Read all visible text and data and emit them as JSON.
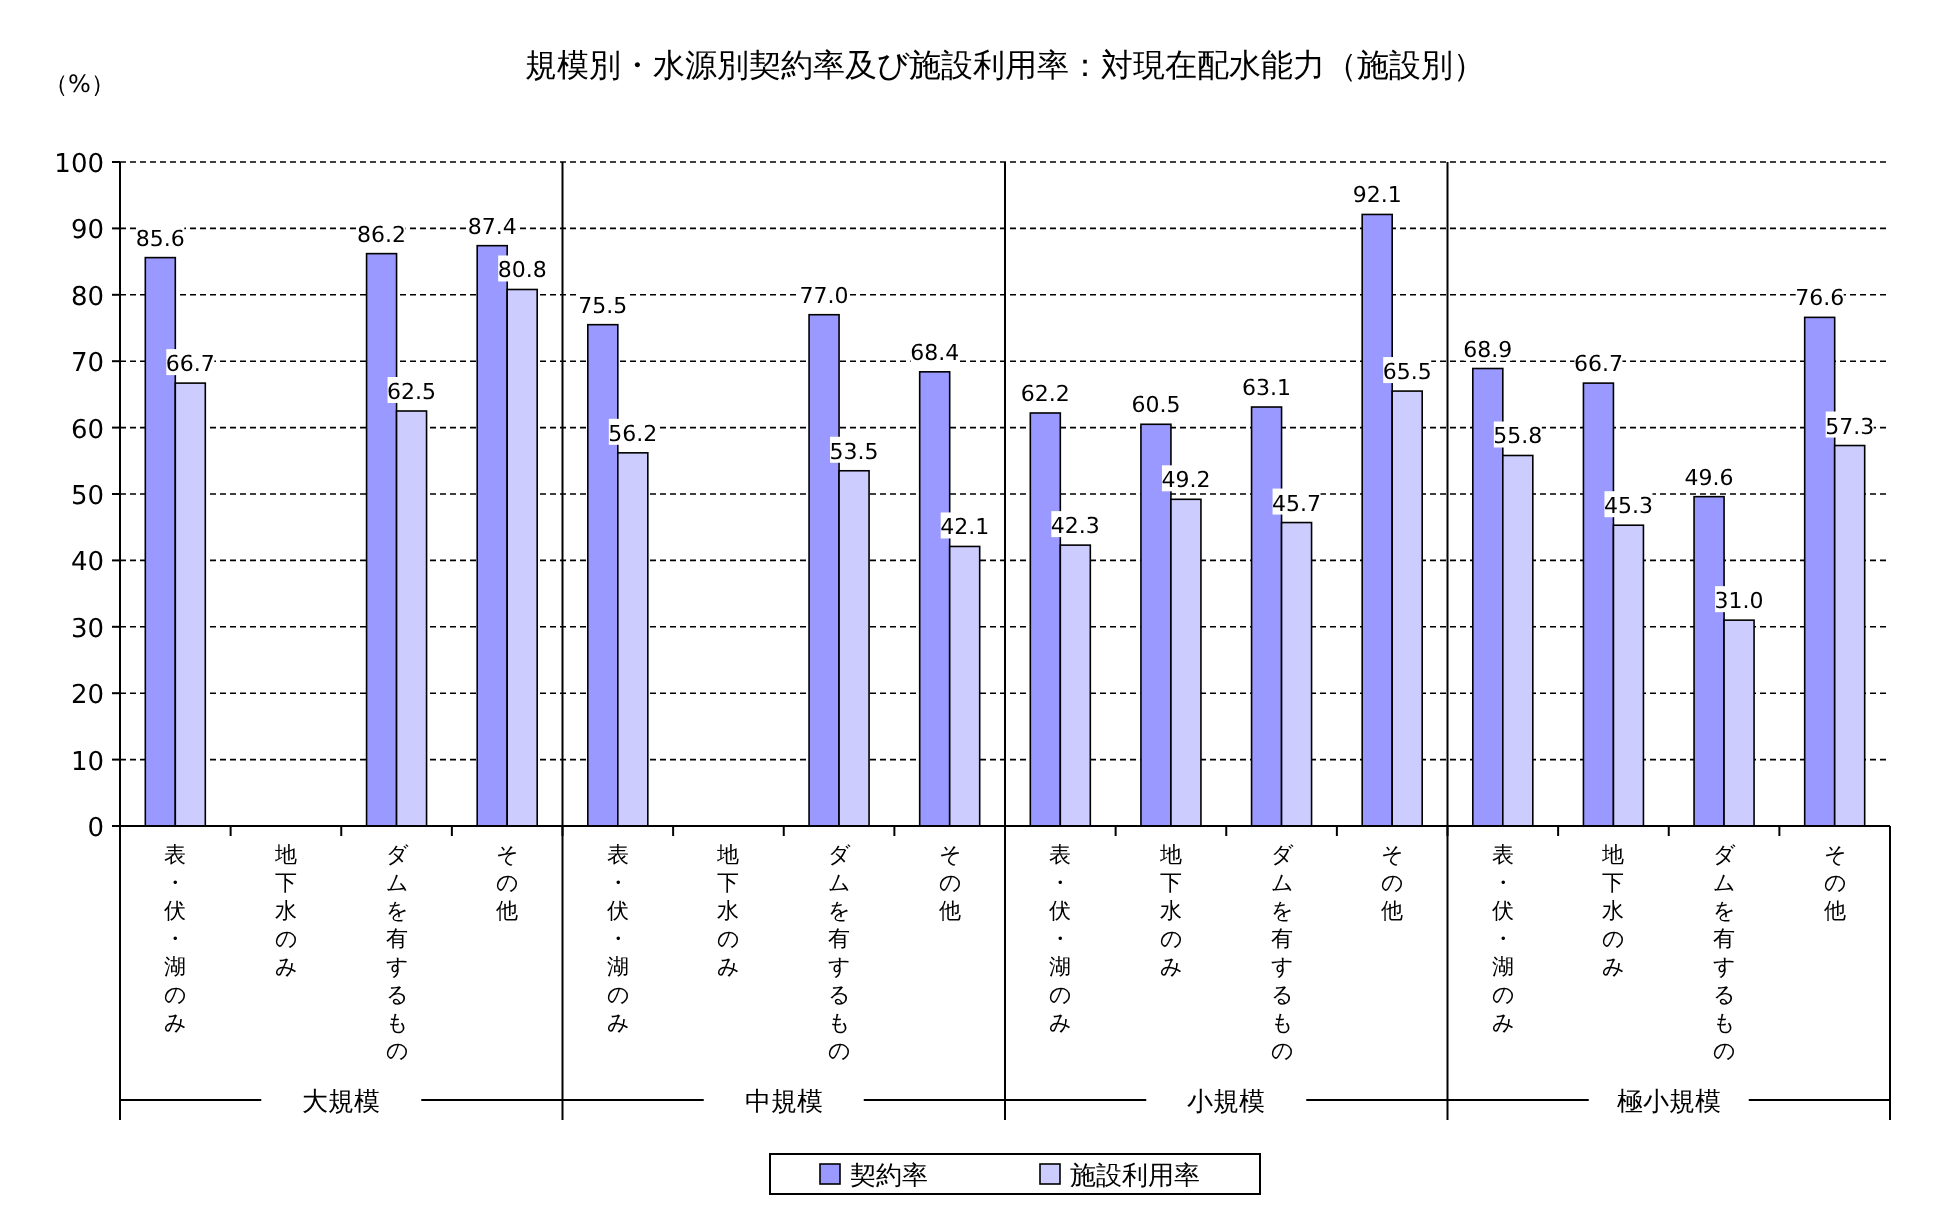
{
  "chart_data": {
    "type": "bar",
    "title": "規模別・水源別契約率及び施設利用率：対現在配水能力（施設別）",
    "ylabel": "（%）",
    "categories": [
      "表・伏・湖のみ",
      "地下水のみ",
      "ダムを有するもの",
      "その他",
      "表・伏・湖のみ",
      "地下水のみ",
      "ダムを有するもの",
      "その他",
      "表・伏・湖のみ",
      "地下水のみ",
      "ダムを有するもの",
      "その他",
      "表・伏・湖のみ",
      "地下水のみ",
      "ダムを有するもの",
      "その他"
    ],
    "series": [
      {
        "name": "契約率",
        "color": "#9999ff",
        "values": [
          85.6,
          null,
          86.2,
          87.4,
          75.5,
          null,
          77.0,
          68.4,
          62.2,
          60.5,
          63.1,
          92.1,
          68.9,
          66.7,
          49.6,
          76.6
        ],
        "value_labels": [
          "85.6",
          null,
          "86.2",
          "87.4",
          "75.5",
          null,
          "77.0",
          "68.4",
          "62.2",
          "60.5",
          "63.1",
          "92.1",
          "68.9",
          "66.7",
          "49.6",
          "76.6"
        ]
      },
      {
        "name": "施設利用率",
        "color": "#ccccff",
        "values": [
          66.7,
          null,
          62.5,
          80.8,
          56.2,
          null,
          53.5,
          42.1,
          42.3,
          49.2,
          45.7,
          65.5,
          55.8,
          45.3,
          31.0,
          57.3
        ],
        "value_labels": [
          "66.7",
          null,
          "62.5",
          "80.8",
          "56.2",
          null,
          "53.5",
          "42.1",
          "42.3",
          "49.2",
          "45.7",
          "65.5",
          "55.8",
          "45.3",
          "31.0",
          "57.3"
        ]
      }
    ],
    "annotations": [
      "大規模",
      "中規模",
      "小規模",
      "極小規模"
    ],
    "ylim": [
      0,
      100
    ],
    "yticks": [
      0,
      10,
      20,
      30,
      40,
      50,
      60,
      70,
      80,
      90,
      100
    ],
    "grid": "y",
    "legend": "bottom"
  }
}
